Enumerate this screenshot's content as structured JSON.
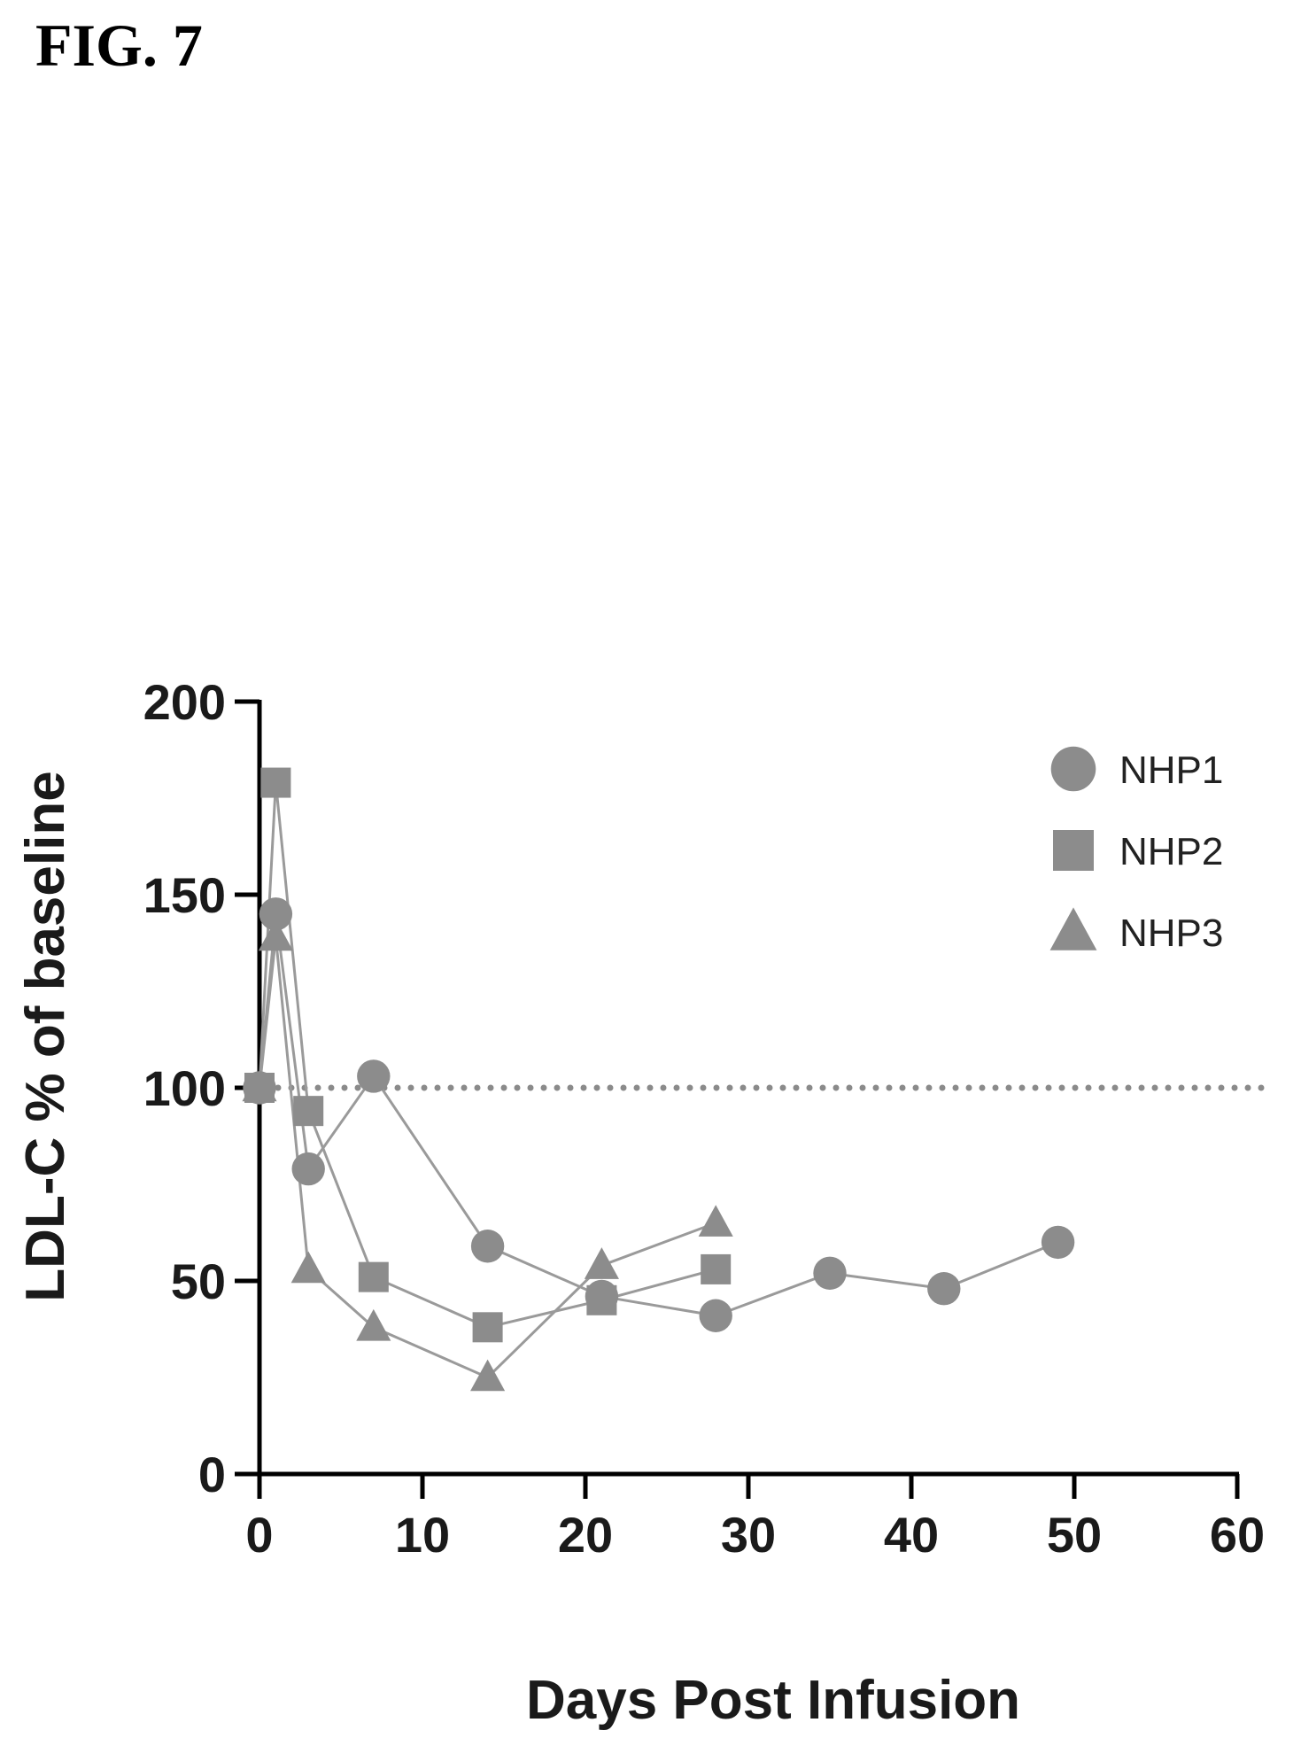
{
  "figure": {
    "title": "FIG. 7"
  },
  "chart_data": {
    "type": "line",
    "xlabel": "Days Post Infusion",
    "ylabel": "LDL-C % of baseline",
    "xlim": [
      0,
      60
    ],
    "ylim": [
      0,
      200
    ],
    "xticks": [
      0,
      10,
      20,
      30,
      40,
      50,
      60
    ],
    "yticks": [
      0,
      50,
      100,
      150,
      200
    ],
    "grid": false,
    "legend_position": "top-right",
    "reference_line": {
      "y": 100,
      "style": "dotted"
    },
    "series_color": "#8c8c8c",
    "line_color": "#9a9a9a",
    "series": [
      {
        "name": "NHP1",
        "marker": "circle",
        "x": [
          0,
          1,
          3,
          7,
          14,
          21,
          28,
          35,
          42,
          49
        ],
        "y": [
          100,
          145,
          79,
          103,
          59,
          46,
          41,
          52,
          48,
          60
        ]
      },
      {
        "name": "NHP2",
        "marker": "square",
        "x": [
          0,
          1,
          3,
          7,
          14,
          21,
          28
        ],
        "y": [
          100,
          179,
          94,
          51,
          38,
          45,
          53
        ]
      },
      {
        "name": "NHP3",
        "marker": "triangle",
        "x": [
          0,
          1,
          3,
          7,
          14,
          21,
          28
        ],
        "y": [
          100,
          139,
          53,
          38,
          25,
          54,
          65
        ]
      }
    ]
  }
}
